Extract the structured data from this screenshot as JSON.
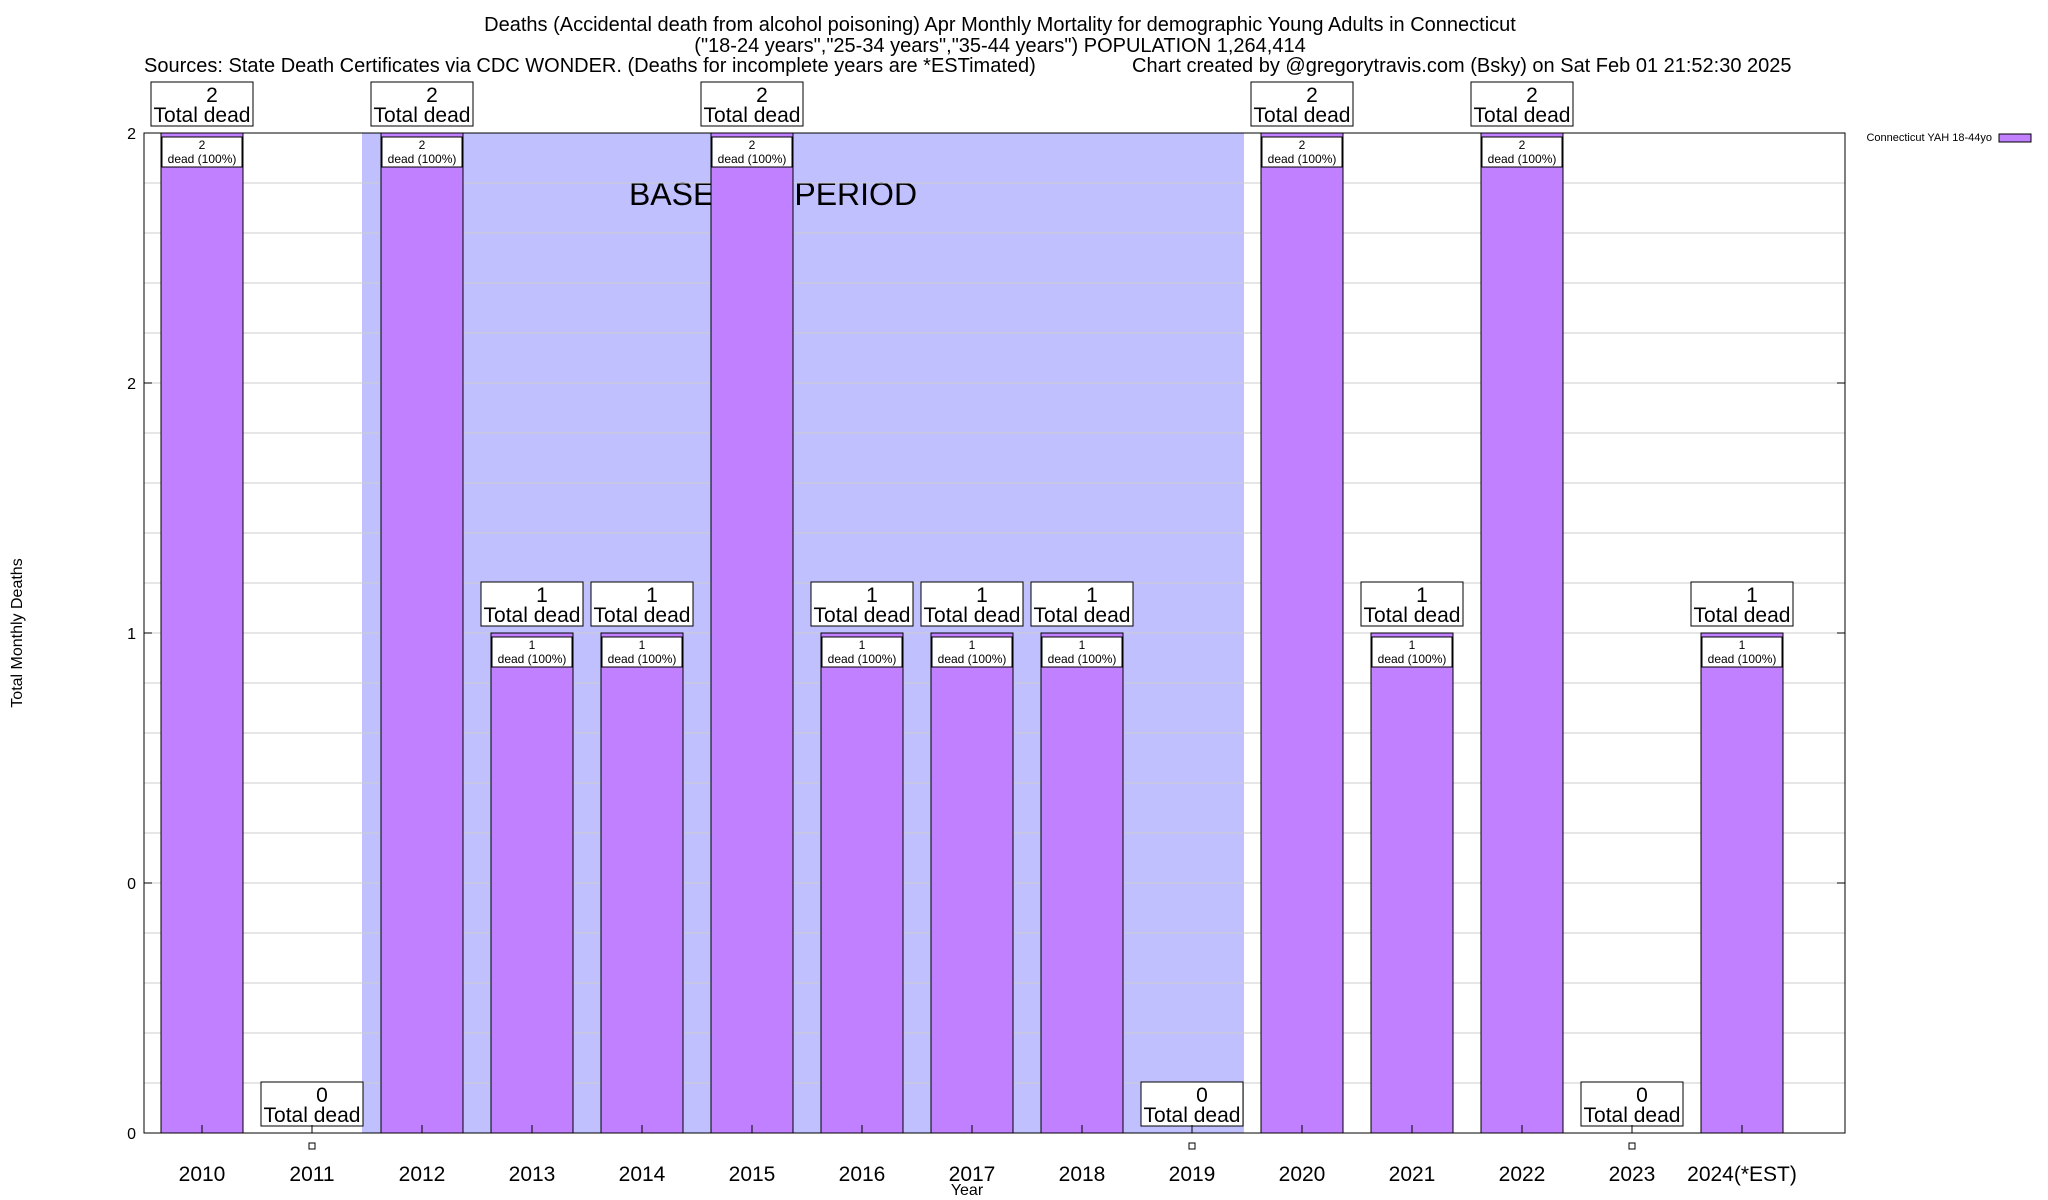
{
  "chart_data": {
    "type": "bar",
    "title_lines": [
      "Deaths (Accidental death from alcohol poisoning) Apr Monthly Mortality for demographic Young Adults in Connecticut",
      "(\"18-24 years\",\"25-34 years\",\"35-44 years\") POPULATION 1,264,414"
    ],
    "sources": "Sources: State Death Certificates via CDC WONDER. (Deaths for incomplete years are *ESTimated)",
    "credit": "Chart created by @gregorytravis.com (Bsky) on Sat Feb 01 21:52:30 2025",
    "xlabel": "Year",
    "ylabel": "Total Monthly Deaths",
    "categories": [
      "2010",
      "2011",
      "2012",
      "2013",
      "2014",
      "2015",
      "2016",
      "2017",
      "2018",
      "2019",
      "2020",
      "2021",
      "2022",
      "2023",
      "2024(*EST)"
    ],
    "series": [
      {
        "name": "Connecticut YAH 18-44yo",
        "values": [
          2,
          0,
          2,
          1,
          1,
          2,
          1,
          1,
          1,
          0,
          2,
          1,
          2,
          0,
          1
        ]
      }
    ],
    "ylim": [
      0,
      2
    ],
    "ytick_labels": [
      "0",
      "0",
      "1",
      "2",
      "2"
    ],
    "total_label_suffix": "Total dead",
    "segment_label_suffix": "dead (100%)",
    "baseline": {
      "label": "BASELINE PERIOD",
      "from": "2012",
      "to": "2019"
    },
    "colors": {
      "bar": "#c080ff",
      "baseline": "#c0c0ff",
      "bar_edge": "#000000"
    },
    "legend_position": "top-right",
    "grid": true
  }
}
